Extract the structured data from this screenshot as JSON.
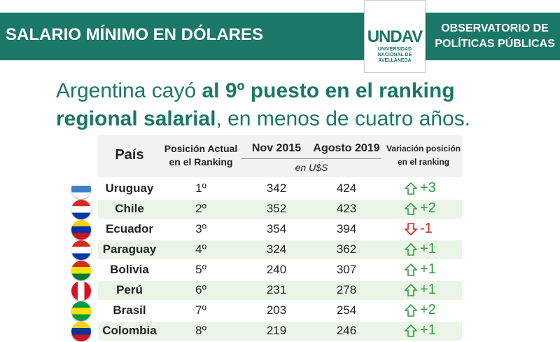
{
  "header": {
    "title": "SALARIO MÍNIMO EN DÓLARES",
    "logo": "UNDAV",
    "logo_sub": [
      "UNIVERSIDAD",
      "NACIONAL DE",
      "AVELLANEDA"
    ],
    "org": [
      "OBSERVATORIO DE",
      "POLÍTICAS PÚBLICAS"
    ]
  },
  "headline": {
    "parts": [
      {
        "text": "Argentina cayó ",
        "bold": false
      },
      {
        "text": "al 9º puesto en el ranking regional salarial",
        "bold": true
      },
      {
        "text": ", en menos de cuatro años.",
        "bold": false
      }
    ]
  },
  "table": {
    "columns": [
      "País",
      "Posición Actual en el Ranking",
      "Nov 2015",
      "Agosto 2019",
      "Variación posición en el ranking"
    ],
    "unit": "en U$S",
    "rows": [
      [
        "Uruguay",
        "1º",
        "342",
        "424",
        "+3"
      ],
      [
        "Chile",
        "2º",
        "352",
        "423",
        "+2"
      ],
      [
        "Ecuador",
        "3º",
        "354",
        "394",
        "-1"
      ],
      [
        "Paraguay",
        "4º",
        "324",
        "362",
        "+1"
      ],
      [
        "Bolivia",
        "5º",
        "240",
        "307",
        "+1"
      ],
      [
        "Perú",
        "6º",
        "231",
        "278",
        "+1"
      ],
      [
        "Brasil",
        "7º",
        "203",
        "254",
        "+2"
      ],
      [
        "Colombia",
        "8º",
        "219",
        "246",
        "+1"
      ]
    ]
  }
}
